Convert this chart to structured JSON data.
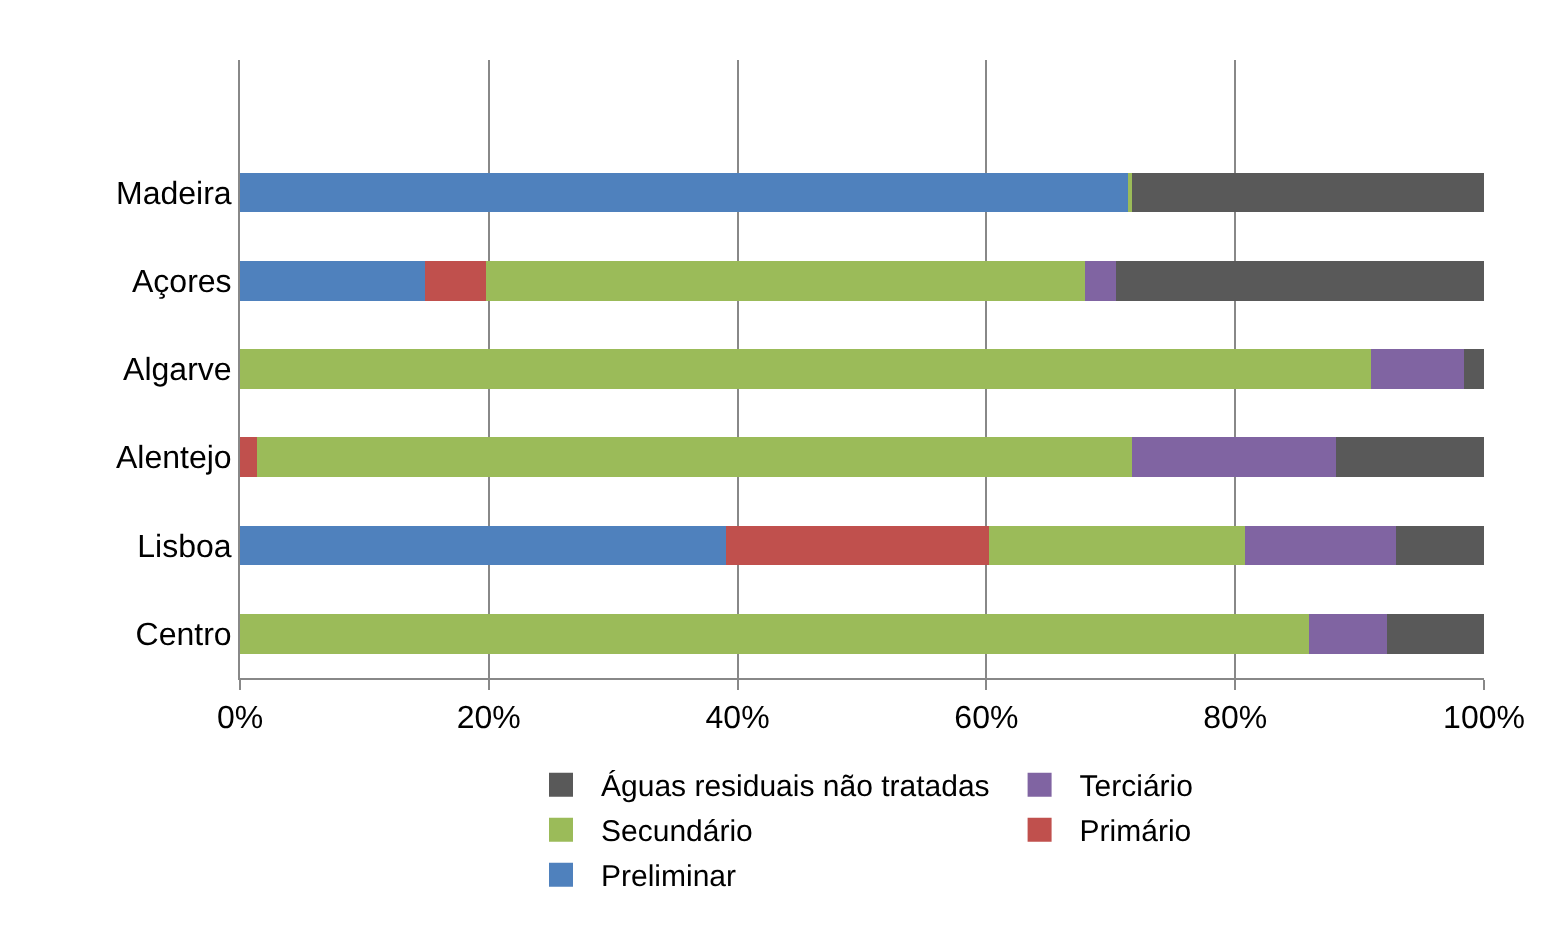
{
  "chart_data": {
    "type": "bar",
    "orientation": "horizontal",
    "stacked": true,
    "categories": [
      null,
      "Madeira",
      "Açores",
      "Algarve",
      "Alentejo",
      "Lisboa",
      "Centro"
    ],
    "series": [
      {
        "name": "Preliminar",
        "color": "#4f81bd",
        "values": [
          null,
          71.5,
          14.9,
          0,
          0,
          39.1,
          0
        ]
      },
      {
        "name": "Primário",
        "color": "#c0504d",
        "values": [
          null,
          0,
          4.9,
          0,
          1.4,
          21.1,
          0
        ]
      },
      {
        "name": "Secundário",
        "color": "#9bbb59",
        "values": [
          null,
          0.2,
          48.1,
          90.9,
          70.3,
          20.6,
          85.9
        ]
      },
      {
        "name": "Terciário",
        "color": "#8064a2",
        "values": [
          null,
          0,
          2.5,
          7.5,
          16.4,
          12.1,
          6.3
        ]
      },
      {
        "name": "Águas residuais não tratadas",
        "color": "#595959",
        "values": [
          null,
          28.3,
          29.6,
          1.6,
          11.9,
          7.1,
          7.8
        ]
      }
    ],
    "xlim": [
      0,
      100
    ],
    "xticks": [
      {
        "value": 0,
        "label": "0%"
      },
      {
        "value": 20,
        "label": "20%"
      },
      {
        "value": 40,
        "label": "40%"
      },
      {
        "value": 60,
        "label": "60%"
      },
      {
        "value": 80,
        "label": "80%"
      },
      {
        "value": 100,
        "label": "100%"
      }
    ],
    "grid": "x",
    "legend": "bottom"
  }
}
